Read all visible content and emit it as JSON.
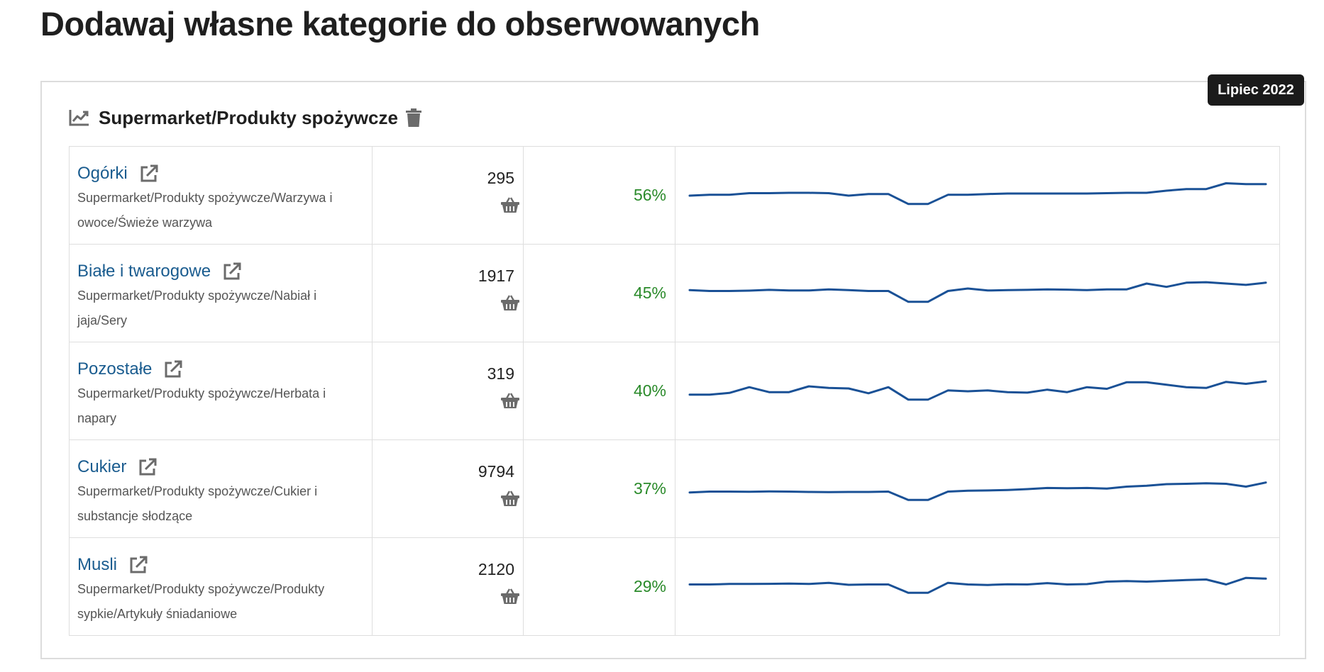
{
  "page": {
    "heading": "Dodawaj własne kategorie do obserwowanych"
  },
  "badge": {
    "label": "Lipiec 2022"
  },
  "card": {
    "title": "Supermarket/Produkty spożywcze",
    "title_icon": "trend-chart-icon",
    "delete_icon": "trash-icon"
  },
  "colors": {
    "link": "#1a5c8f",
    "percent": "#2a8a2a",
    "sparkline": "#1a5196",
    "badge_bg": "#1b1b1b"
  },
  "rows": [
    {
      "name": "Ogórki",
      "path": "Supermarket/Produkty spożywcze/Warzywa i owoce/Świeże warzywa",
      "count": "295",
      "percent": "56%",
      "trend": [
        40,
        40.5,
        40.5,
        41.5,
        41.5,
        41.7,
        41.7,
        41.5,
        40,
        41,
        41,
        35,
        35,
        40.5,
        40.5,
        41,
        41.3,
        41.3,
        41.3,
        41.3,
        41.3,
        41.5,
        41.7,
        41.7,
        43,
        44,
        44,
        47.5,
        47,
        47
      ]
    },
    {
      "name": "Białe i twarogowe",
      "path": "Supermarket/Produkty spożywcze/Nabiał i jaja/Sery",
      "count": "1917",
      "percent": "45%",
      "trend": [
        42,
        41.5,
        41.5,
        41.7,
        42.2,
        41.8,
        41.8,
        42.5,
        42,
        41.5,
        41.5,
        35,
        35,
        41.5,
        43,
        41.8,
        42,
        42.2,
        42.5,
        42.3,
        42,
        42.5,
        42.5,
        46,
        44,
        46.5,
        46.8,
        46,
        45.2,
        46.5
      ]
    },
    {
      "name": "Pozostałe",
      "path": "Supermarket/Produkty spożywcze/Herbata i napary",
      "count": "319",
      "percent": "40%",
      "trend": [
        38,
        38,
        39,
        42.5,
        39.5,
        39.5,
        43,
        42,
        41.7,
        38.8,
        42.5,
        35,
        35,
        40.5,
        40,
        40.5,
        39.5,
        39.2,
        41,
        39.5,
        42.5,
        41.5,
        45.5,
        45.5,
        44,
        42.5,
        42,
        45.7,
        44.5,
        46
      ]
    },
    {
      "name": "Cukier",
      "path": "Supermarket/Produkty spożywcze/Cukier i substancje słodzące",
      "count": "9794",
      "percent": "37%",
      "trend": [
        38,
        38.5,
        38.5,
        38.4,
        38.6,
        38.5,
        38.3,
        38.2,
        38.3,
        38.3,
        38.5,
        33.5,
        33.5,
        38.5,
        39,
        39.2,
        39.5,
        40,
        40.7,
        40.5,
        40.7,
        40.3,
        41.5,
        42,
        43,
        43.2,
        43.5,
        43.2,
        41.5,
        44
      ]
    },
    {
      "name": "Musli",
      "path": "Supermarket/Produkty spożywcze/Produkty sypkie/Artykuły śniadaniowe",
      "count": "2120",
      "percent": "29%",
      "trend": [
        41.5,
        41.5,
        41.8,
        41.8,
        41.9,
        42,
        41.8,
        42.5,
        41.3,
        41.5,
        41.5,
        36.5,
        36.5,
        42.5,
        41.5,
        41.2,
        41.6,
        41.5,
        42.3,
        41.5,
        41.7,
        43.2,
        43.5,
        43.2,
        43.7,
        44.2,
        44.5,
        41.5,
        45.5,
        45
      ]
    }
  ]
}
